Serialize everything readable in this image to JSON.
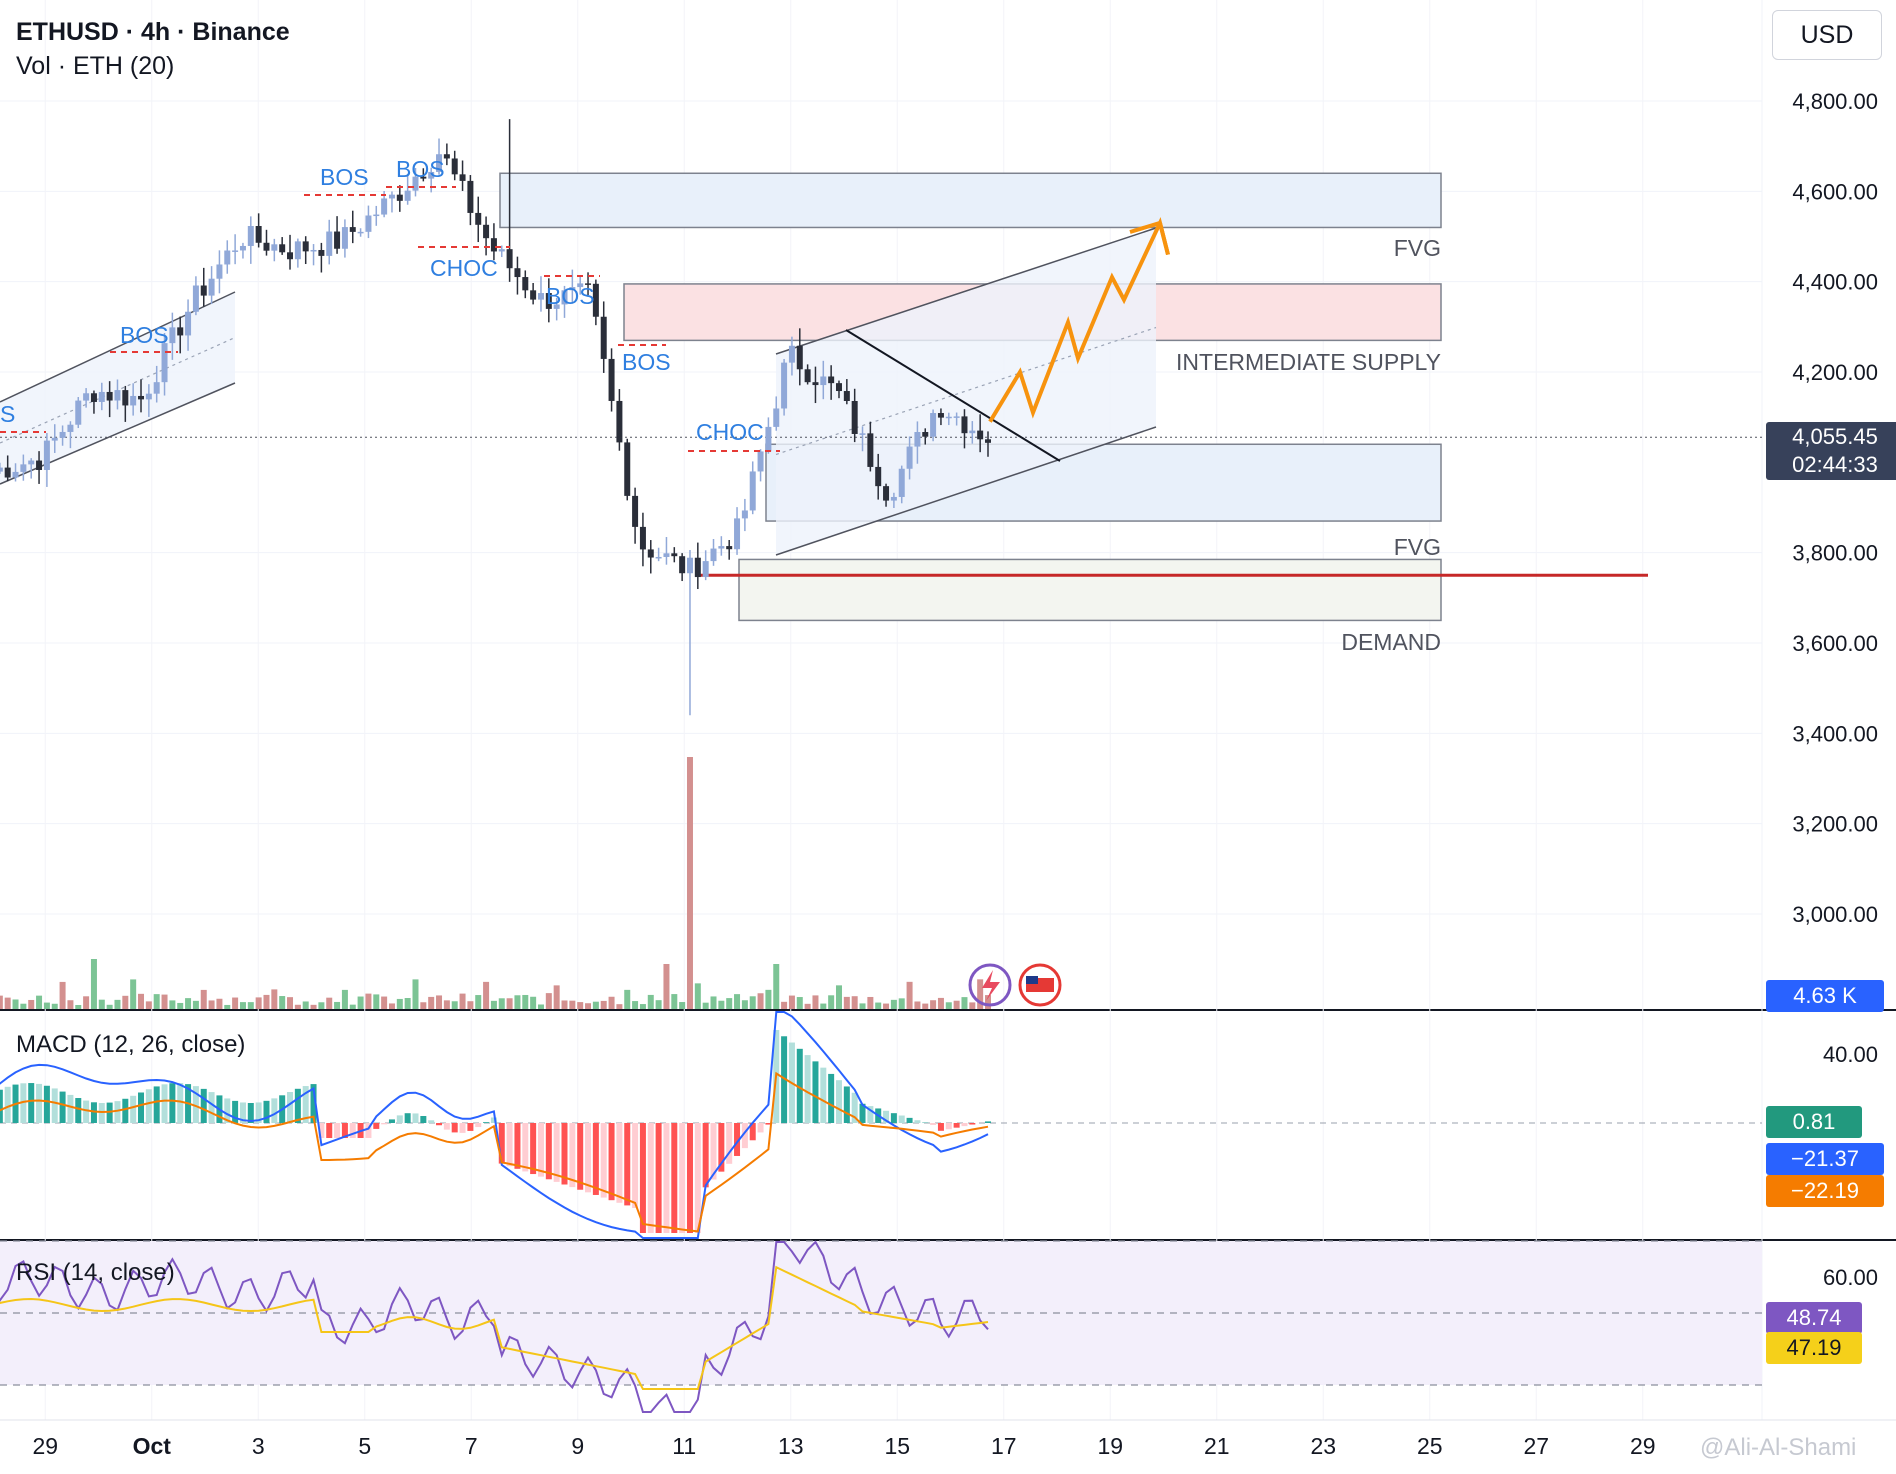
{
  "header": {
    "title": "ETHUSD · 4h · Binance",
    "volume_label": "Vol · ETH (20)",
    "currency_button": "USD"
  },
  "price_axis": {
    "ticks": [
      "4,800.00",
      "4,600.00",
      "4,400.00",
      "4,200.00",
      "3,800.00",
      "3,600.00",
      "3,400.00",
      "3,200.00",
      "3,000.00"
    ],
    "tick_values": [
      4800,
      4600,
      4400,
      4200,
      3800,
      3600,
      3400,
      3200,
      3000
    ],
    "last_price": "4,055.45",
    "countdown": "02:44:33",
    "volume_value": "4.63 K",
    "volume_axis_cut": "0"
  },
  "time_axis": {
    "labels": [
      "29",
      "Oct",
      "3",
      "5",
      "7",
      "9",
      "11",
      "13",
      "15",
      "17",
      "19",
      "21",
      "23",
      "25",
      "27",
      "29"
    ]
  },
  "macd": {
    "label": "MACD (12, 26, close)",
    "axis_tick": "40.00",
    "histogram_value": "0.81",
    "macd_value": "−21.37",
    "signal_value": "−22.19"
  },
  "rsi": {
    "label": "RSI (14, close)",
    "axis_tick": "60.00",
    "rsi_value": "48.74",
    "ma_value": "47.19"
  },
  "annotations": {
    "fvg_upper": "FVG",
    "supply": "INTERMEDIATE SUPPLY",
    "fvg_lower": "FVG",
    "demand": "DEMAND",
    "structure_labels": [
      "S",
      "BOS",
      "BOS",
      "BOS",
      "CHOC",
      "BOS",
      "BOS",
      "CHOC"
    ]
  },
  "watermark": "@Ali-Al-Shami",
  "colors": {
    "up_candle": "#90a8d8",
    "down_candle": "#2a2e39",
    "structure_text": "#2f7fe0",
    "fvg_fill": "#e8f0fa",
    "supply_fill": "#fbe1e3",
    "demand_line": "#c62828",
    "projection": "#f7930e",
    "macd_line": "#2962ff",
    "signal_line": "#f57c00",
    "rsi_line": "#7e57c2",
    "rsi_ma": "#f5c518"
  },
  "chart_data": [
    {
      "type": "candlestick",
      "title": "ETHUSD · 4h · Binance",
      "x": [
        "29",
        "Oct",
        "3",
        "5",
        "7",
        "9",
        "11",
        "13",
        "15",
        "17",
        "19",
        "21",
        "23",
        "25",
        "27",
        "29"
      ],
      "ylim": [
        2870,
        4900
      ],
      "close_path_points": [
        [
          "Sep 28",
          3980
        ],
        [
          "Sep 29",
          4010
        ],
        [
          "Sep 30",
          4160
        ],
        [
          "Oct 1",
          4140
        ],
        [
          "Oct 2",
          4350
        ],
        [
          "Oct 3",
          4500
        ],
        [
          "Oct 4",
          4470
        ],
        [
          "Oct 5",
          4490
        ],
        [
          "Oct 6",
          4580
        ],
        [
          "Oct 7",
          4690
        ],
        [
          "Oct 8",
          4480
        ],
        [
          "Oct 9",
          4360
        ],
        [
          "Oct 10",
          4370
        ],
        [
          "Oct 10 pm",
          3820
        ],
        [
          "Oct 11",
          3760
        ],
        [
          "Oct 12",
          3850
        ],
        [
          "Oct 13",
          4240
        ],
        [
          "Oct 14",
          4150
        ],
        [
          "Oct 14 pm",
          3930
        ],
        [
          "Oct 15",
          4130
        ],
        [
          "Oct 16",
          4055.45
        ]
      ],
      "extremes": {
        "high": 4760,
        "low": 3440
      },
      "zones": [
        {
          "name": "FVG",
          "from": 4520,
          "to": 4640
        },
        {
          "name": "INTERMEDIATE SUPPLY",
          "from": 4270,
          "to": 4395
        },
        {
          "name": "FVG",
          "from": 3870,
          "to": 4040
        },
        {
          "name": "DEMAND",
          "from": 3650,
          "to": 3785
        }
      ],
      "key_level": 3750,
      "projection_path": [
        4090,
        4200,
        4110,
        4310,
        4230,
        4410,
        4360,
        4530,
        4460
      ]
    },
    {
      "type": "bar",
      "title": "Vol · ETH (20)",
      "last_value": "4.63 K",
      "spike_label": "Oct 11"
    },
    {
      "type": "line",
      "title": "MACD (12, 26, close)",
      "series": [
        {
          "name": "MACD",
          "last": -21.37
        },
        {
          "name": "Signal",
          "last": -22.19
        },
        {
          "name": "Histogram",
          "last": 0.81
        }
      ]
    },
    {
      "type": "line",
      "title": "RSI (14, close)",
      "series": [
        {
          "name": "RSI",
          "last": 48.74
        },
        {
          "name": "RSI MA",
          "last": 47.19
        }
      ],
      "bands": [
        70,
        50,
        30
      ]
    }
  ]
}
